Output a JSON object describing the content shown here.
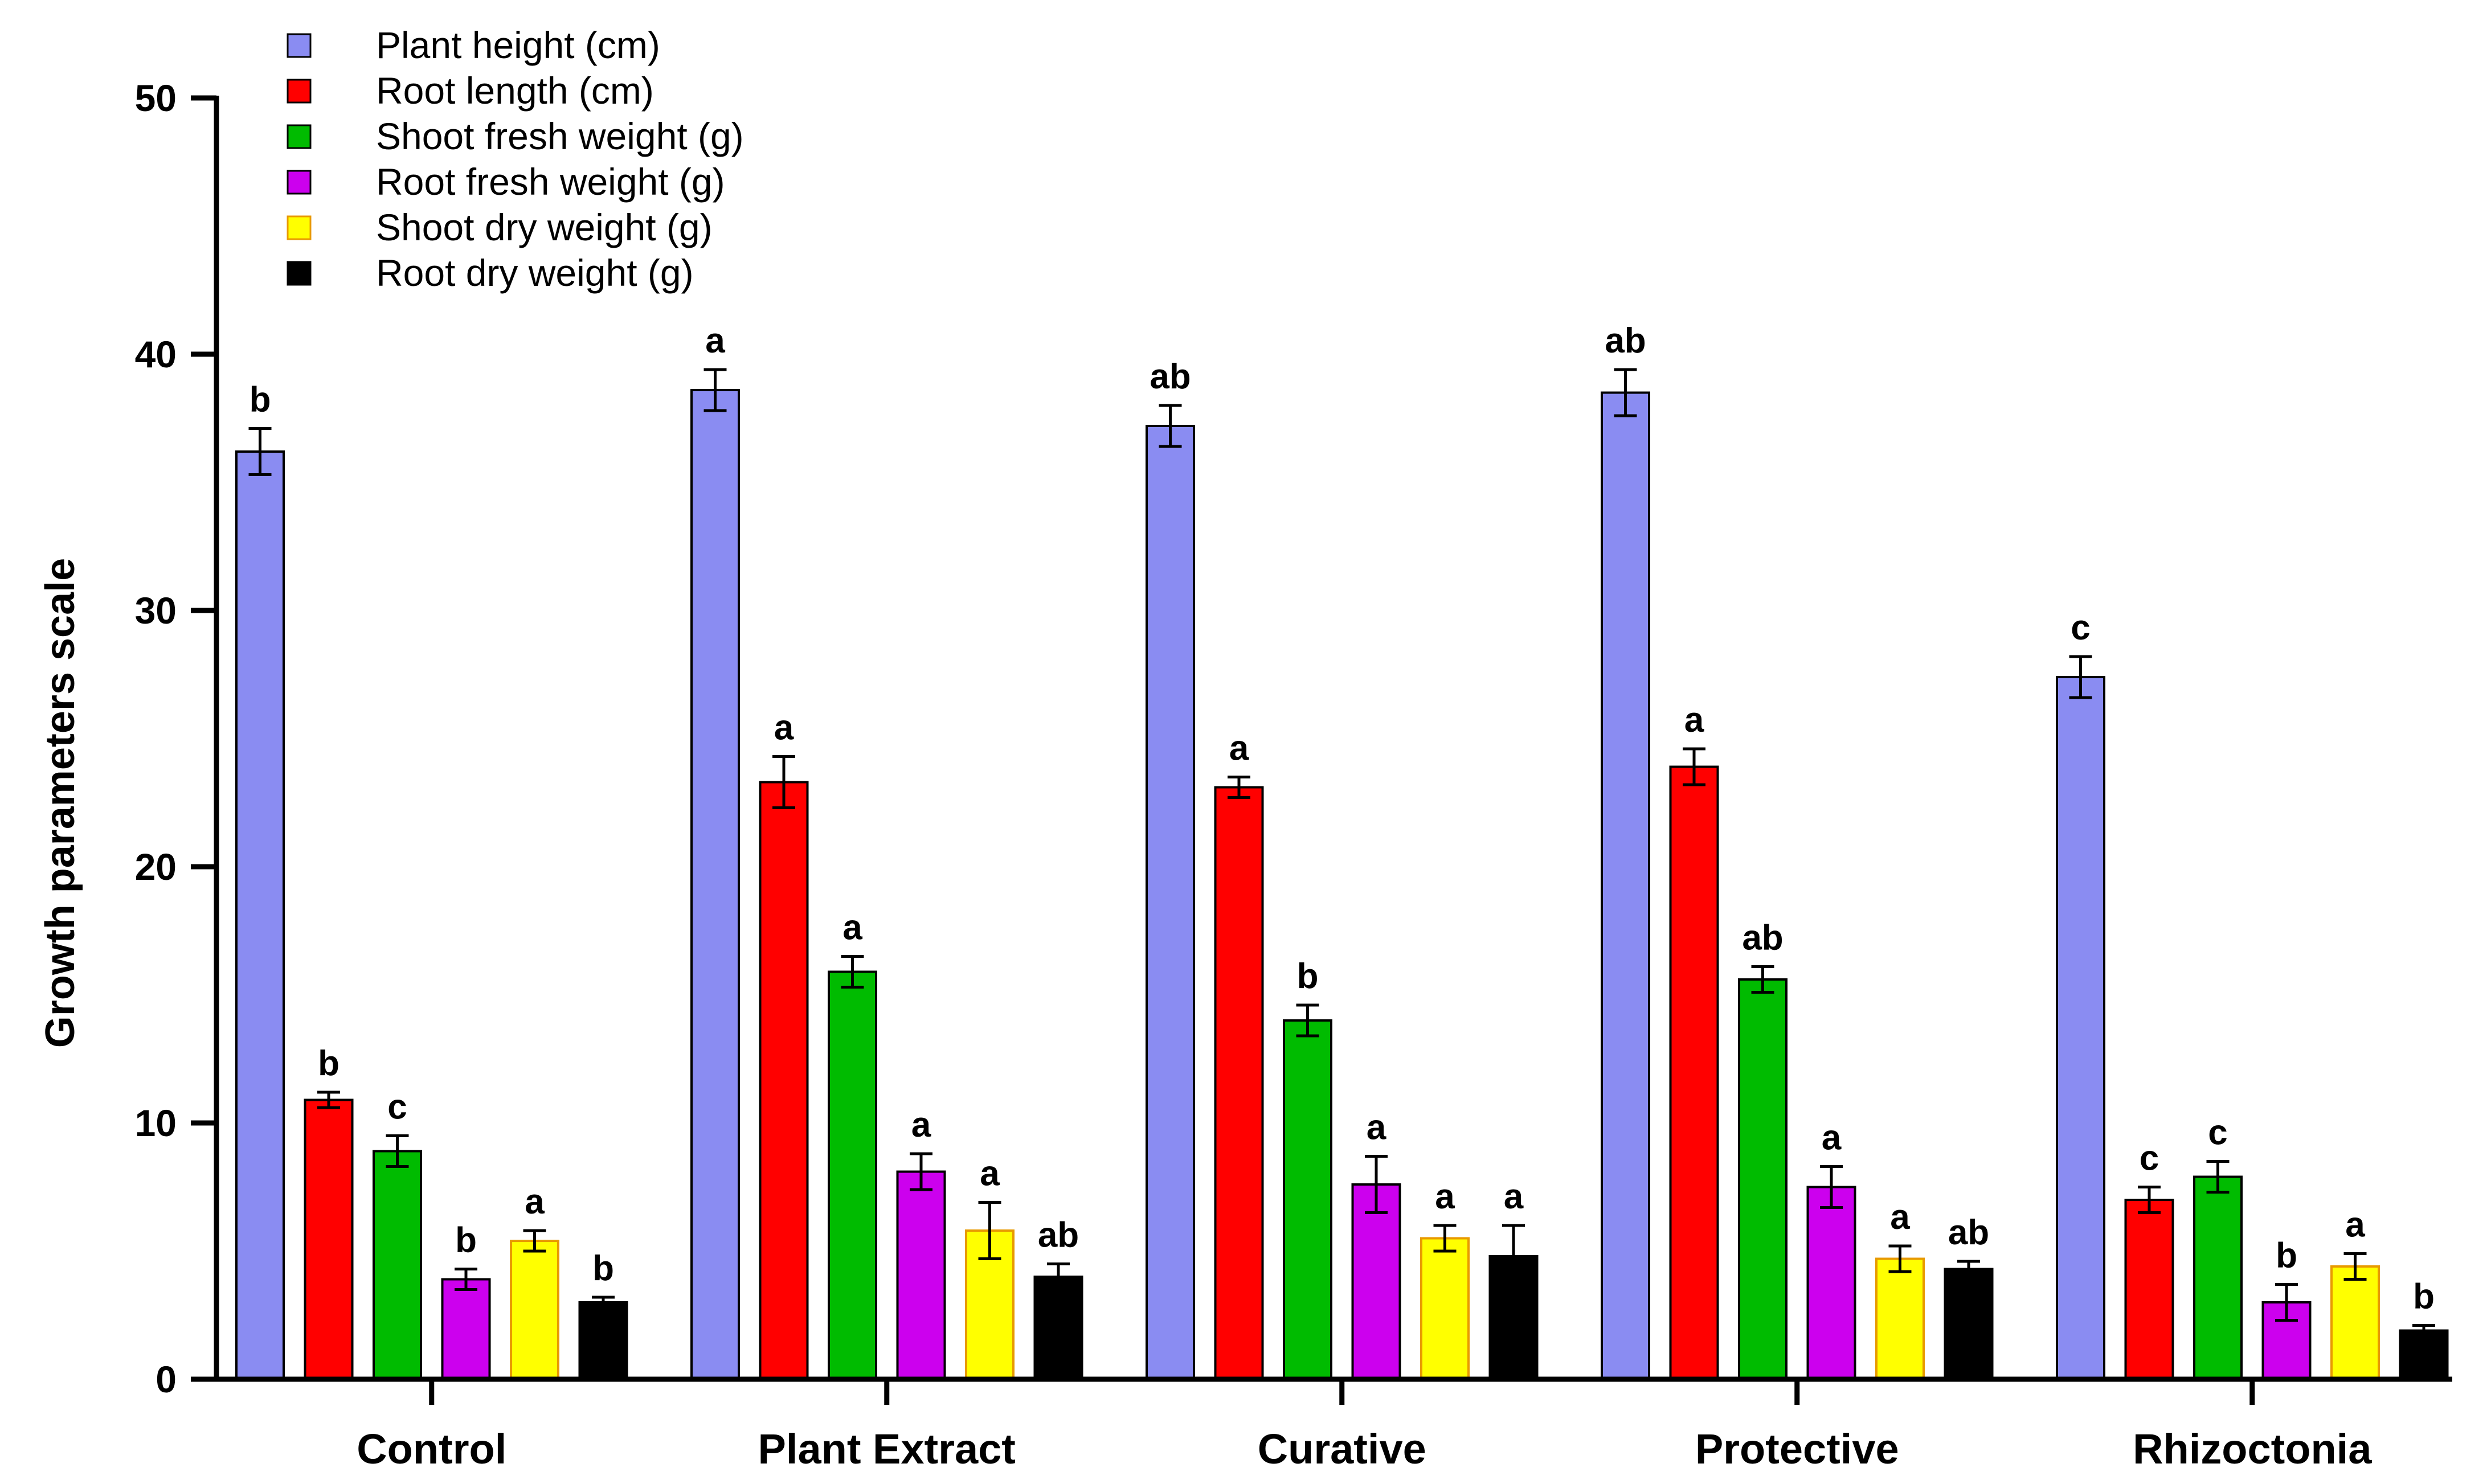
{
  "chart_data": {
    "type": "bar",
    "title": "",
    "xlabel": "",
    "ylabel": "Growth parameters scale",
    "ylim": [
      0,
      50
    ],
    "yticks": [
      "0",
      "10",
      "20",
      "30",
      "40",
      "50"
    ],
    "categories": [
      "Control",
      "Plant Extract",
      "Curative",
      "Protective",
      "Rhizoctonia"
    ],
    "legend_position": "top-left",
    "series": [
      {
        "name": "Plant height (cm)",
        "color": "#8a8cf2",
        "values": [
          36.2,
          38.6,
          37.2,
          38.5,
          27.4
        ],
        "errors": [
          0.9,
          0.8,
          0.8,
          0.9,
          0.8
        ],
        "letters": [
          "b",
          "a",
          "ab",
          "ab",
          "c"
        ]
      },
      {
        "name": "Root length (cm)",
        "color": "#ff0000",
        "values": [
          10.9,
          23.3,
          23.1,
          23.9,
          7.0
        ],
        "errors": [
          0.3,
          1.0,
          0.4,
          0.7,
          0.5
        ],
        "letters": [
          "b",
          "a",
          "a",
          "a",
          "c"
        ]
      },
      {
        "name": "Shoot fresh weight (g)",
        "color": "#00bb00",
        "values": [
          8.9,
          15.9,
          14.0,
          15.6,
          7.9
        ],
        "errors": [
          0.6,
          0.6,
          0.6,
          0.5,
          0.6
        ],
        "letters": [
          "c",
          "a",
          "b",
          "ab",
          "c"
        ]
      },
      {
        "name": "Root fresh weight (g)",
        "color": "#cc00ee",
        "values": [
          3.9,
          8.1,
          7.6,
          7.5,
          3.0
        ],
        "errors": [
          0.4,
          0.7,
          1.1,
          0.8,
          0.7
        ],
        "letters": [
          "b",
          "a",
          "a",
          "a",
          "b"
        ]
      },
      {
        "name": "Shoot dry weight (g)",
        "color": "#ffff00",
        "values": [
          5.4,
          5.8,
          5.5,
          4.7,
          4.4
        ],
        "errors": [
          0.4,
          1.1,
          0.5,
          0.5,
          0.5
        ],
        "letters": [
          "a",
          "a",
          "a",
          "a",
          "a"
        ]
      },
      {
        "name": "Root dry weight (g)",
        "color": "#000000",
        "values": [
          3.0,
          4.0,
          4.8,
          4.3,
          1.9
        ],
        "errors": [
          0.2,
          0.5,
          1.2,
          0.3,
          0.2
        ],
        "letters": [
          "b",
          "ab",
          "a",
          "ab",
          "b"
        ]
      }
    ]
  }
}
